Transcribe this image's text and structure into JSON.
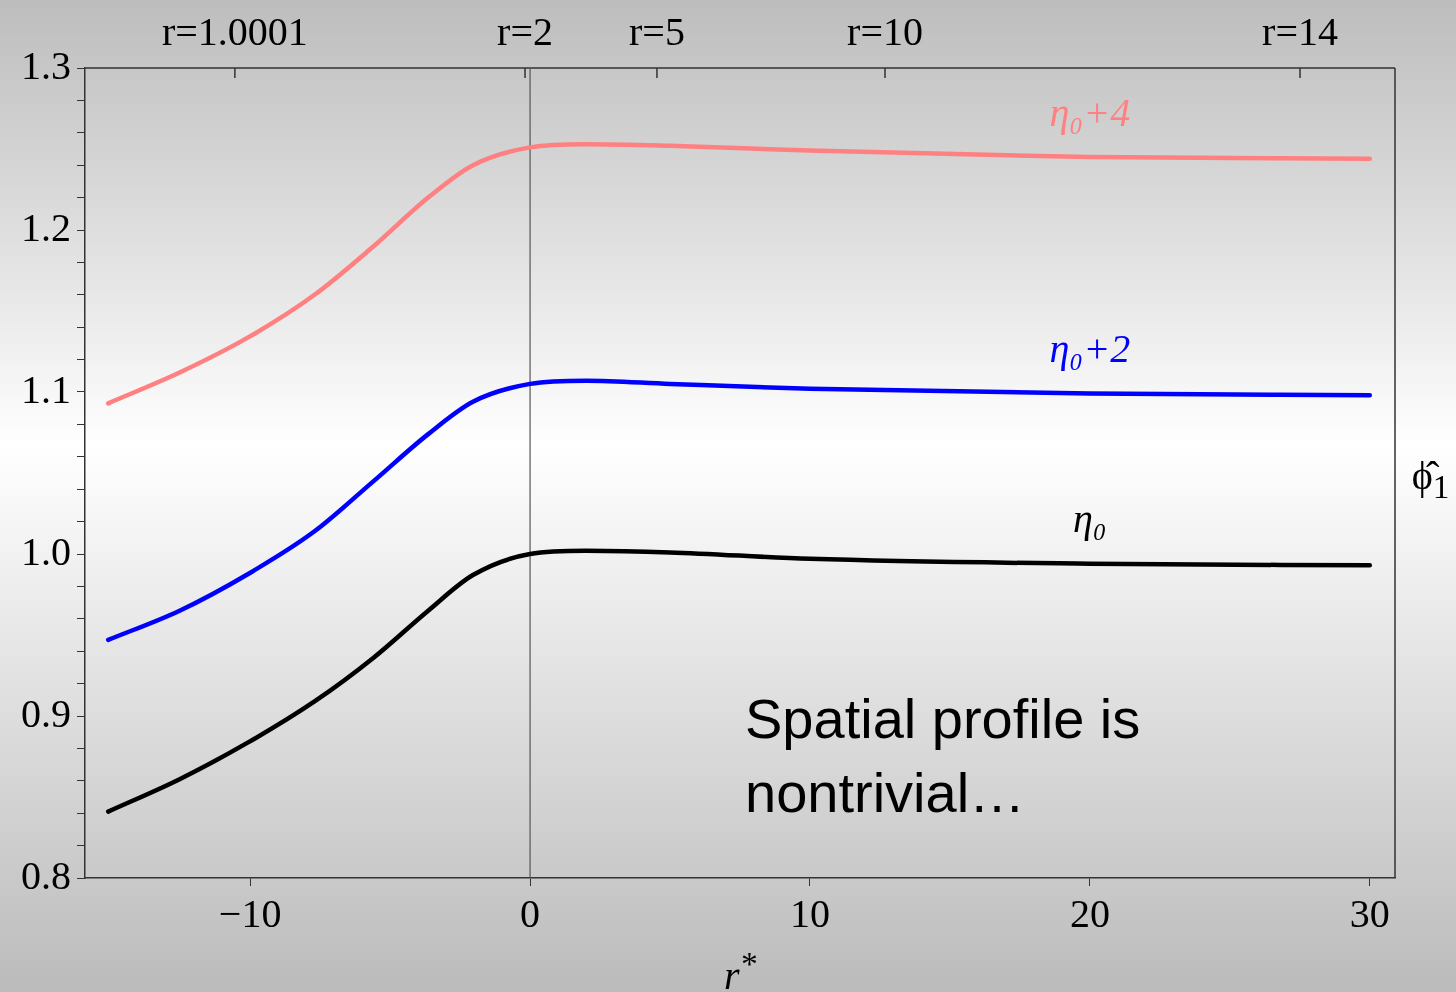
{
  "chart_data": {
    "type": "line",
    "xlabel": "r$^{*}$",
    "ylabel": "ϕ̂$_{1}$",
    "xlim": [
      -15.9,
      30.9
    ],
    "ylim": [
      0.8,
      1.3
    ],
    "xticks": [
      {
        "value": -10,
        "label": "−10"
      },
      0,
      10,
      20,
      30
    ],
    "yticks": [
      0.8,
      {
        "value": 0.82,
        "label": null
      },
      {
        "value": 0.84,
        "label": null
      },
      {
        "value": 0.86,
        "label": null
      },
      {
        "value": 0.88,
        "label": null
      },
      0.9,
      {
        "value": 0.92,
        "label": null
      },
      {
        "value": 0.94,
        "label": null
      },
      {
        "value": 0.96,
        "label": null
      },
      {
        "value": 0.98,
        "label": null
      },
      {
        "value": 1,
        "label": "1.0"
      },
      {
        "value": 1.02,
        "label": null
      },
      {
        "value": 1.04,
        "label": null
      },
      {
        "value": 1.06,
        "label": null
      },
      {
        "value": 1.08,
        "label": null
      },
      1.1,
      {
        "value": 1.12,
        "label": null
      },
      {
        "value": 1.14,
        "label": null
      },
      {
        "value": 1.16,
        "label": null
      },
      {
        "value": 1.18,
        "label": null
      },
      1.2,
      {
        "value": 1.22,
        "label": null
      },
      {
        "value": 1.24,
        "label": null
      },
      {
        "value": 1.26,
        "label": null
      },
      {
        "value": 1.28,
        "label": null
      },
      1.3
    ],
    "x": [
      -15.07,
      -12.52,
      -10.04,
      -7.7,
      -5.59,
      -3.64,
      -2.04,
      0,
      2,
      5,
      10,
      20,
      30
    ],
    "series": [
      {
        "name": "η₀+4",
        "color": "#ff8080",
        "values": [
          1.093,
          1.112,
          1.134,
          1.16,
          1.19,
          1.22,
          1.24,
          1.251,
          1.253,
          1.252,
          1.249,
          1.245,
          1.244
        ]
      },
      {
        "name": "η₀+2",
        "color": "#0000ff",
        "values": [
          0.947,
          0.965,
          0.988,
          1.014,
          1.045,
          1.074,
          1.094,
          1.105,
          1.107,
          1.105,
          1.102,
          1.099,
          1.098
        ]
      },
      {
        "name": "η₀",
        "color": "#000000",
        "values": [
          0.841,
          0.861,
          0.884,
          0.909,
          0.936,
          0.965,
          0.987,
          1.0,
          1.002,
          1.001,
          0.997,
          0.994,
          0.993
        ]
      }
    ],
    "ref_lines": [
      {
        "axis": "x",
        "value": 0,
        "color": "#555555"
      }
    ],
    "annotations": [
      "Spatial profile is nontrivial…",
      "r=1.0001",
      "r=2",
      "r=5",
      "r=10",
      "r=14"
    ],
    "grid": false,
    "legend": false,
    "marker": "none",
    "line_style": "solid"
  }
}
